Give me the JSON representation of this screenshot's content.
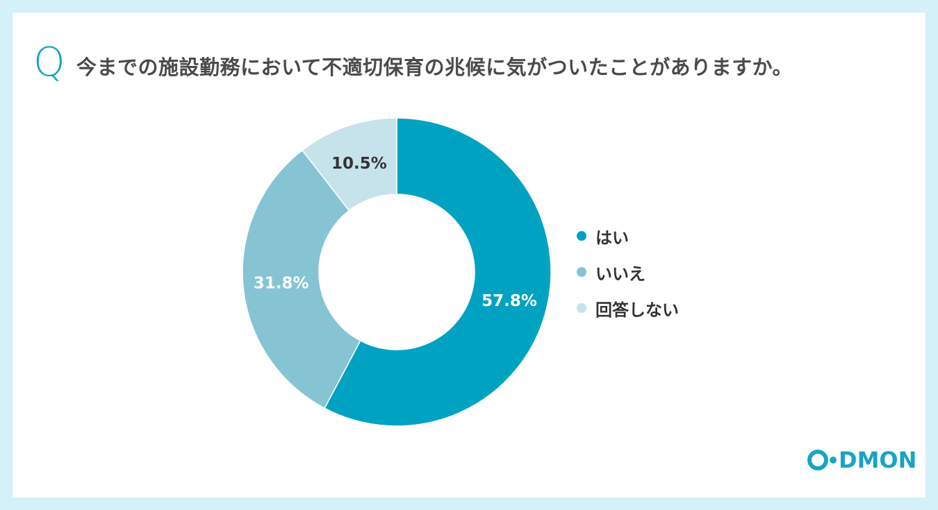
{
  "question": {
    "q_mark": "Q",
    "text": "今までの施設勤務において不適切保育の兆候に気がついたことがありますか。"
  },
  "chart_data": {
    "type": "pie",
    "donut": true,
    "categories": [
      "はい",
      "いいえ",
      "回答しない"
    ],
    "values": [
      57.8,
      31.8,
      10.5
    ],
    "labels": [
      "57.8%",
      "31.8%",
      "10.5%"
    ],
    "colors": [
      "#00a2c2",
      "#86c4d4",
      "#c6e2ea"
    ],
    "label_colors": [
      "#ffffff",
      "#ffffff",
      "#333333"
    ],
    "legend_position": "right"
  },
  "logo": {
    "rest": "DMON"
  }
}
